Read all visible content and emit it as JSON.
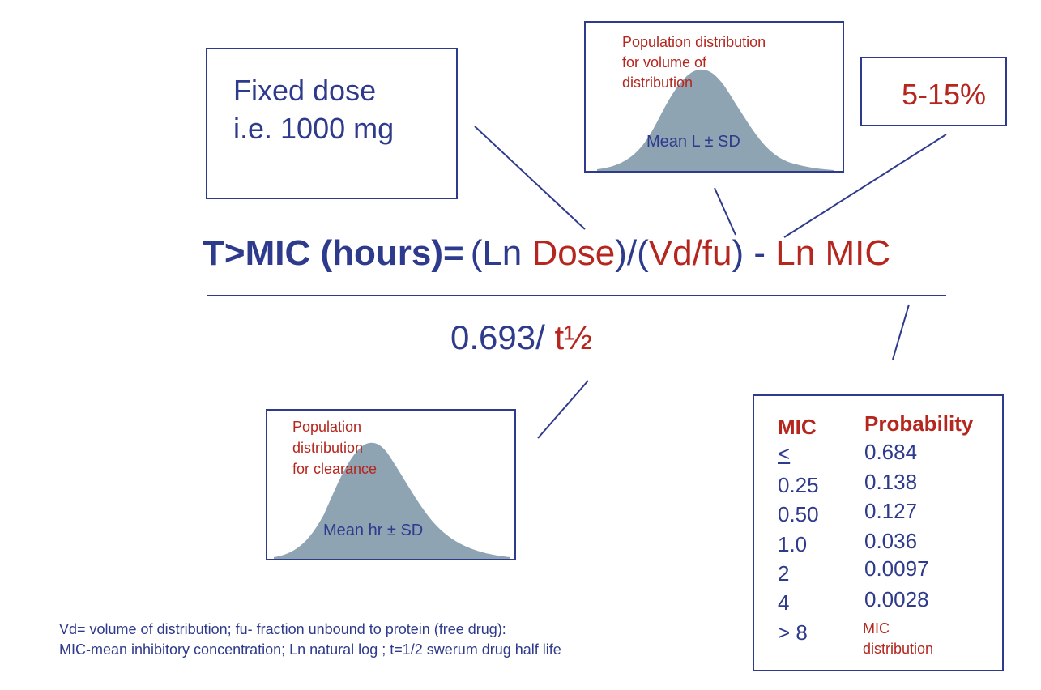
{
  "fixed_dose": {
    "line1": "Fixed dose",
    "line2": "i.e. 1000 mg"
  },
  "vd_box": {
    "label_lines": [
      "Population distribution",
      "for volume of",
      "distribution"
    ],
    "mean": "Mean L ± SD"
  },
  "fu_box": {
    "value": "5-15%"
  },
  "formula": {
    "lhs": "T>MIC (hours)=",
    "p1": "(Ln ",
    "dose": "Dose",
    "p2": ")/(",
    "vdfu": "Vd/fu",
    "p3": ") - ",
    "lnmic": "Ln MIC",
    "denom_prefix": "0.693/ ",
    "denom_half": "t½"
  },
  "cl_box": {
    "label_lines": [
      "Population",
      "distribution",
      "for clearance"
    ],
    "mean": "Mean hr ± SD"
  },
  "mic_table": {
    "header_mic": "MIC",
    "header_prob": "Probability",
    "rows": [
      {
        "mic": "<",
        "prob": "0.684"
      },
      {
        "mic": "0.25",
        "prob": "0.138"
      },
      {
        "mic": "0.50",
        "prob": "0.127"
      },
      {
        "mic": "1.0",
        "prob": "0.036"
      },
      {
        "mic": "2",
        "prob": "0.0097"
      },
      {
        "mic": "4",
        "prob": "0.0028"
      },
      {
        "mic": "> 8",
        "prob_lines": [
          "MIC",
          "distribution"
        ]
      }
    ]
  },
  "footnote": {
    "line1": "Vd= volume of distribution; fu- fraction unbound to protein (free drug):",
    "line2": "MIC-mean inhibitory concentration; Ln natural log ; t=1/2 swerum drug half life"
  },
  "colors": {
    "navy": "#2e3a8c",
    "red": "#b5261e",
    "curve_fill": "#8fa4b3"
  }
}
